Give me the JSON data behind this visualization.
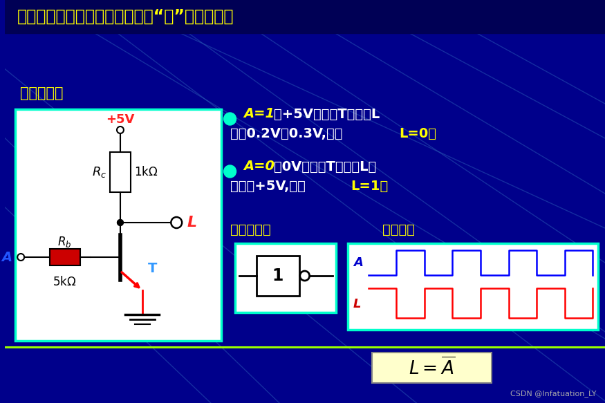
{
  "bg_color": "#00008B",
  "title_text": "定义：输入与输出信号状态满足“非”逻辑关系。",
  "title_color": "#FFFF00",
  "title_fontsize": 18,
  "section_label1": "非门电路：",
  "section_label1_color": "#FFFF00",
  "bullet_color": "#00FFCC",
  "text_color": "#FFFFFF",
  "highlight_color": "#FFFF00",
  "logic_label": "逻辑符号：",
  "wave_label": "波形图：",
  "circuit_bg": "#FFFFFF",
  "circuit_border": "#00FFCC",
  "wave_bg": "#FFFFFF",
  "wave_border": "#00FFCC",
  "logic_bg": "#FFFFFF",
  "logic_border": "#00FFCC",
  "formula_bg": "#FFFFCC",
  "wave_A_color": "#0000FF",
  "wave_L_color": "#FF0000",
  "diagonal_color": "#1a3a8a",
  "separator_color": "#99FF00",
  "bullet1_a": "A=1",
  "bullet1_b": "（+5V）时，T导通，L",
  "bullet1_c": "输出0.2V～0.3V,即：",
  "bullet1_d": "L=0；",
  "bullet2_a": "A=0",
  "bullet2_b": "（0V）时，T截止，L输",
  "bullet2_c": "出近似+5V,即：",
  "bullet2_d": "L=1；"
}
